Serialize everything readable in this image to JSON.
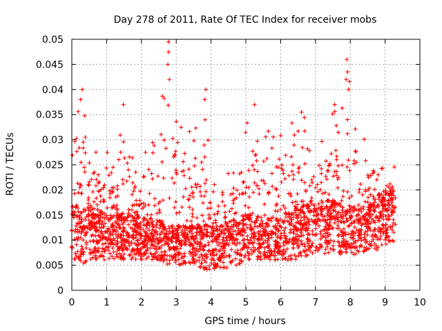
{
  "chart_data": {
    "type": "scatter",
    "title": "Day 278 of 2011, Rate Of TEC Index for receiver mobs",
    "xlabel": "GPS time / hours",
    "ylabel": "ROTI / TECUs",
    "xlim": [
      0,
      10
    ],
    "ylim": [
      0,
      0.05
    ],
    "x_ticks": [
      "0",
      "1",
      "2",
      "3",
      "4",
      "5",
      "6",
      "7",
      "8",
      "9",
      "10"
    ],
    "y_ticks": [
      "0",
      "0.005",
      "0.01",
      "0.015",
      "0.02",
      "0.025",
      "0.03",
      "0.035",
      "0.04",
      "0.045",
      "0.05"
    ],
    "grid": true,
    "marker": "+",
    "color": "#ff0000",
    "data_range_x": [
      0,
      9.3
    ],
    "series": [
      {
        "name": "ROTI",
        "profile_hours": [
          0,
          0.15,
          0.3,
          0.5,
          0.8,
          1.0,
          1.3,
          1.5,
          1.8,
          2.0,
          2.3,
          2.5,
          2.75,
          3.0,
          3.3,
          3.5,
          3.8,
          4.0,
          4.3,
          4.6,
          4.8,
          5.0,
          5.3,
          5.6,
          5.8,
          6.0,
          6.3,
          6.6,
          6.8,
          7.0,
          7.3,
          7.6,
          7.9,
          8.2,
          8.5,
          8.8,
          9.1,
          9.3
        ],
        "profile_floor": [
          0.006,
          0.006,
          0.005,
          0.006,
          0.006,
          0.006,
          0.006,
          0.006,
          0.006,
          0.006,
          0.006,
          0.006,
          0.005,
          0.005,
          0.005,
          0.005,
          0.004,
          0.004,
          0.004,
          0.005,
          0.005,
          0.006,
          0.006,
          0.006,
          0.006,
          0.006,
          0.006,
          0.006,
          0.007,
          0.007,
          0.007,
          0.007,
          0.007,
          0.007,
          0.008,
          0.008,
          0.009,
          0.01
        ],
        "profile_core": [
          0.012,
          0.013,
          0.012,
          0.013,
          0.012,
          0.011,
          0.011,
          0.011,
          0.011,
          0.011,
          0.01,
          0.01,
          0.009,
          0.009,
          0.009,
          0.009,
          0.009,
          0.009,
          0.009,
          0.01,
          0.01,
          0.011,
          0.011,
          0.011,
          0.011,
          0.011,
          0.012,
          0.013,
          0.013,
          0.013,
          0.014,
          0.014,
          0.013,
          0.013,
          0.013,
          0.014,
          0.016,
          0.016
        ],
        "profile_upper": [
          0.035,
          0.04,
          0.04,
          0.032,
          0.03,
          0.028,
          0.026,
          0.037,
          0.027,
          0.031,
          0.03,
          0.033,
          0.05,
          0.035,
          0.034,
          0.033,
          0.04,
          0.03,
          0.022,
          0.024,
          0.03,
          0.033,
          0.036,
          0.033,
          0.032,
          0.031,
          0.034,
          0.036,
          0.033,
          0.03,
          0.033,
          0.038,
          0.046,
          0.033,
          0.03,
          0.025,
          0.027,
          0.025
        ],
        "highlights": [
          {
            "x": 0.3,
            "y": 0.04
          },
          {
            "x": 0.25,
            "y": 0.038
          },
          {
            "x": 1.48,
            "y": 0.037
          },
          {
            "x": 2.78,
            "y": 0.0495
          },
          {
            "x": 2.78,
            "y": 0.0475
          },
          {
            "x": 2.76,
            "y": 0.045
          },
          {
            "x": 2.8,
            "y": 0.042
          },
          {
            "x": 3.85,
            "y": 0.04
          },
          {
            "x": 3.82,
            "y": 0.038
          },
          {
            "x": 5.25,
            "y": 0.037
          },
          {
            "x": 6.6,
            "y": 0.0355
          },
          {
            "x": 7.55,
            "y": 0.037
          },
          {
            "x": 7.9,
            "y": 0.046
          },
          {
            "x": 7.92,
            "y": 0.0435
          },
          {
            "x": 7.88,
            "y": 0.042
          },
          {
            "x": 7.95,
            "y": 0.04
          }
        ]
      }
    ]
  }
}
